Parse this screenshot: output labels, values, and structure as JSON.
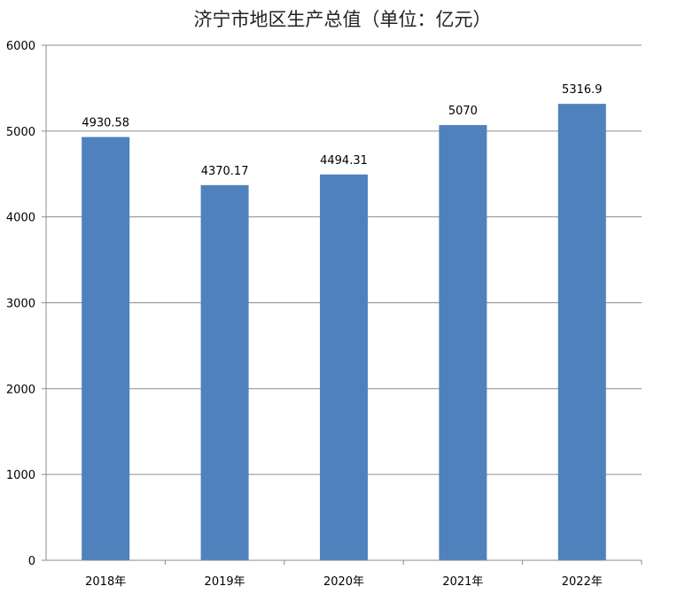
{
  "chart_data": {
    "type": "bar",
    "title": "济宁市地区生产总值（单位：亿元）",
    "categories": [
      "2018年",
      "2019年",
      "2020年",
      "2021年",
      "2022年"
    ],
    "values": [
      4930.58,
      4370.17,
      4494.31,
      5070,
      5316.9
    ],
    "value_labels": [
      "4930.58",
      "4370.17",
      "4494.31",
      "5070",
      "5316.9"
    ],
    "ylim": [
      0,
      6000
    ],
    "yticks": [
      0,
      1000,
      2000,
      3000,
      4000,
      5000,
      6000
    ],
    "xlabel": "",
    "ylabel": "",
    "grid": true,
    "legend": "none",
    "bar_color": "#4f81bd"
  }
}
